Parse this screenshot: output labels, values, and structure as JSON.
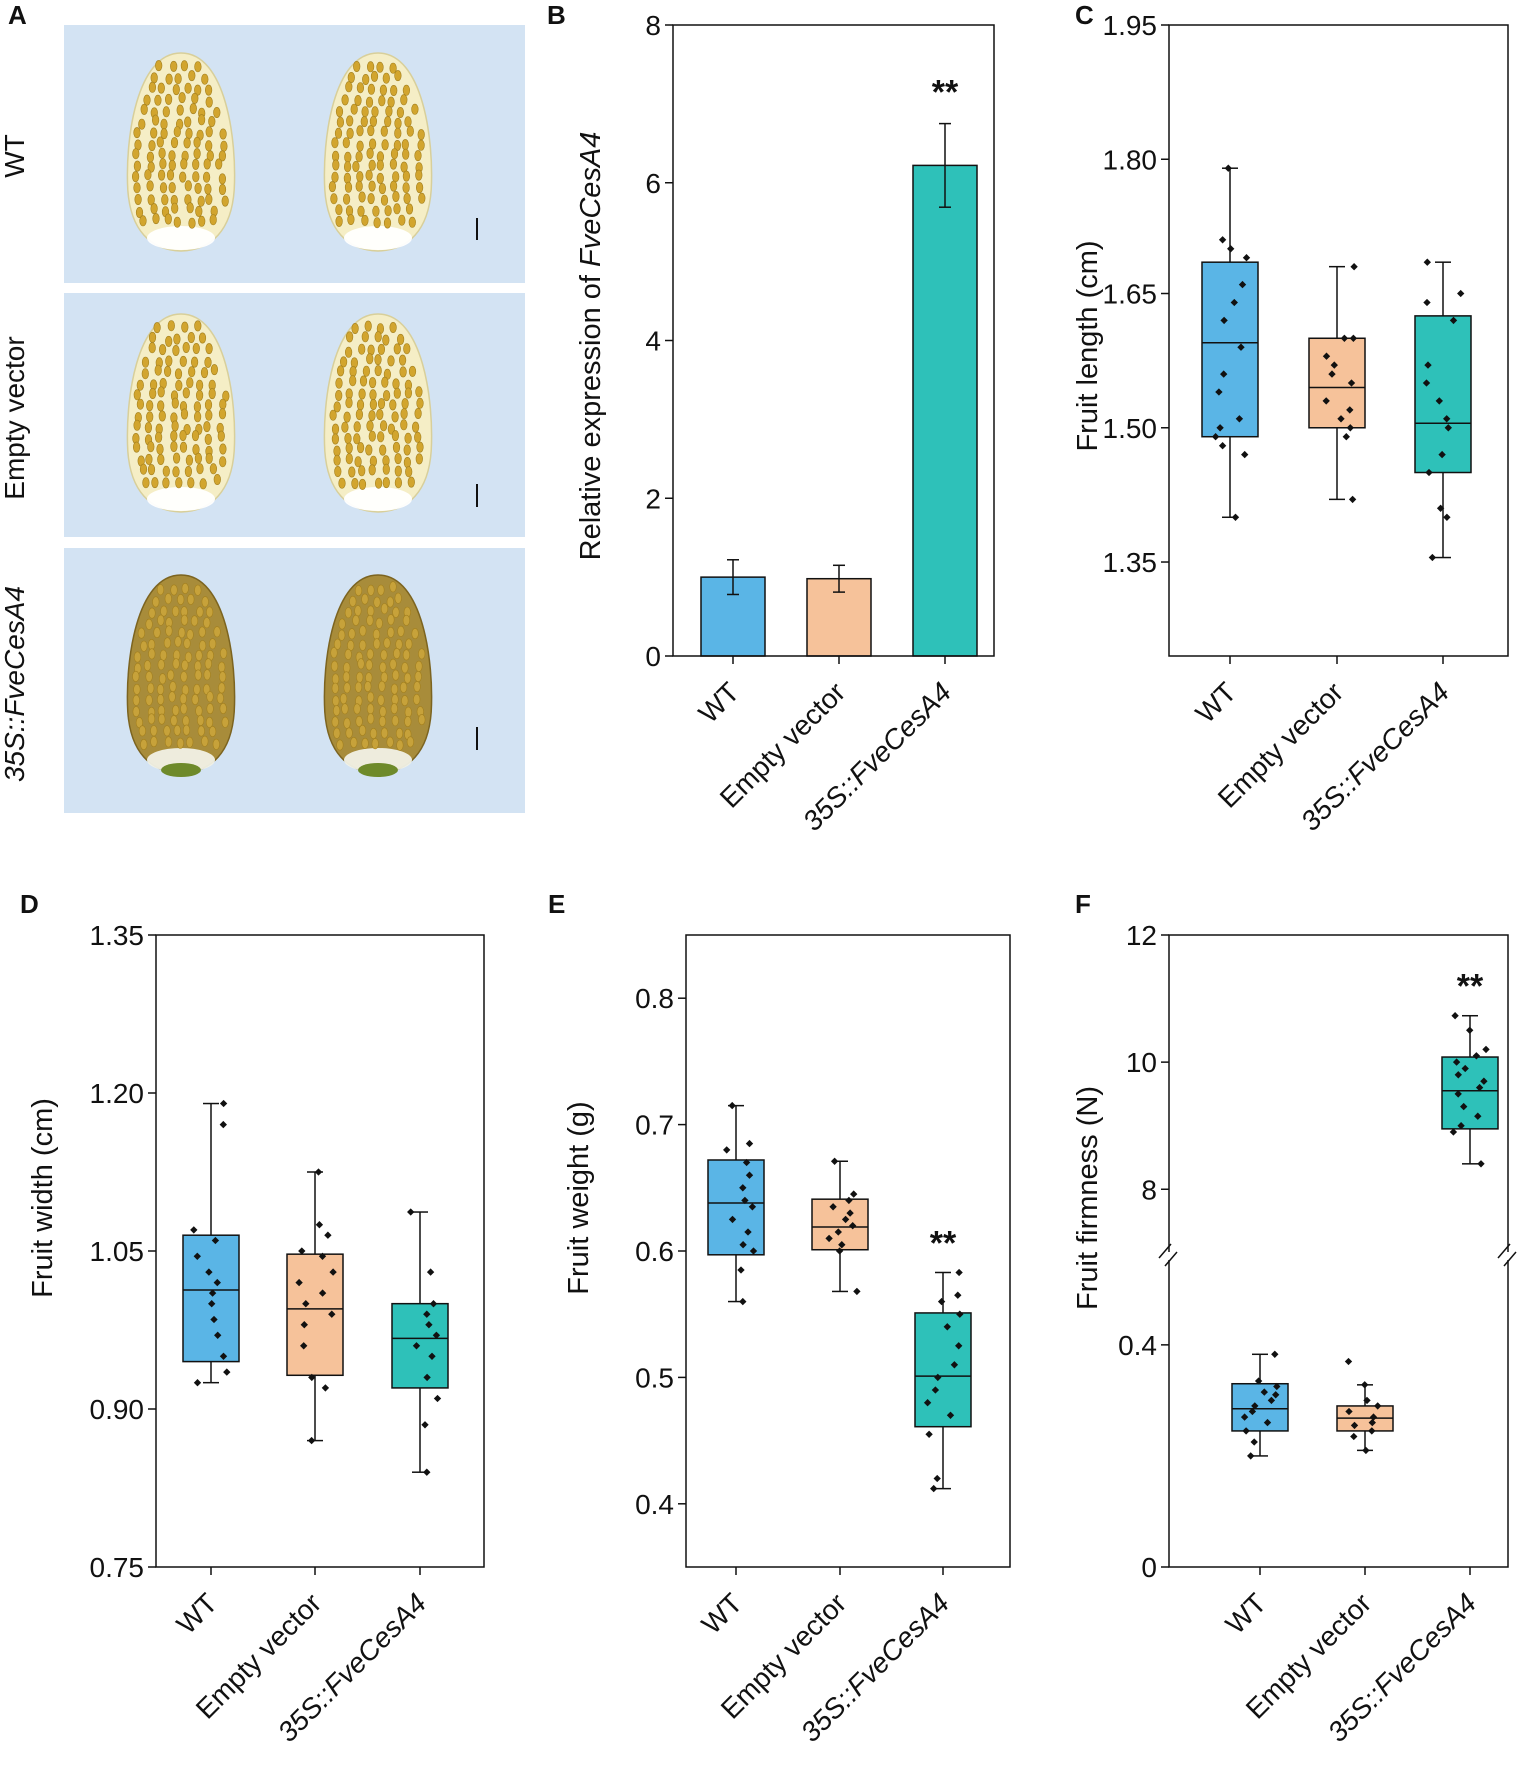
{
  "figure_panels": [
    "A",
    "B",
    "C",
    "D",
    "E",
    "F"
  ],
  "colors": {
    "wt": "#5ab5e6",
    "ev": "#f6c29a",
    "oe": "#2ec1b9",
    "photo_bg": "#d3e3f3",
    "berry": "#f5eec6",
    "achene": "#d2a52e",
    "achene_dark": "#a4801e"
  },
  "photo_panel": {
    "letter": "A",
    "rows": [
      {
        "label": "WT",
        "italic": false,
        "tone": "light"
      },
      {
        "label": "Empty vector",
        "italic": false,
        "tone": "light"
      },
      {
        "label": "35S::FveCesA4",
        "italic": true,
        "tone": "dark"
      }
    ]
  },
  "chart_data": [
    {
      "panel": "B",
      "type": "bar",
      "ylabel_prefix": "Relative expression of ",
      "ylabel_gene": "FveCesA4",
      "ylim": [
        0,
        8
      ],
      "yticks": [
        0,
        2,
        4,
        6,
        8
      ],
      "categories": [
        "WT",
        "Empty vector",
        "35S::FveCesA4"
      ],
      "values": [
        1.0,
        0.98,
        6.22
      ],
      "errors": [
        0.22,
        0.17,
        0.53
      ],
      "significance": [
        "",
        "",
        "**"
      ]
    },
    {
      "panel": "C",
      "type": "box",
      "ylabel": "Fruit length (cm)",
      "ylim": [
        1.245,
        1.95
      ],
      "yticks": [
        1.35,
        1.5,
        1.65,
        1.8,
        1.95
      ],
      "ytick_labels": [
        "1.35",
        "1.50",
        "1.65",
        "1.80",
        "1.95"
      ],
      "categories": [
        "WT",
        "Empty vector",
        "35S::FveCesA4"
      ],
      "boxes": [
        {
          "min": 1.4,
          "q1": 1.49,
          "median": 1.595,
          "q3": 1.685,
          "max": 1.79,
          "points": [
            1.4,
            1.47,
            1.48,
            1.49,
            1.5,
            1.51,
            1.54,
            1.56,
            1.59,
            1.62,
            1.64,
            1.66,
            1.69,
            1.7,
            1.71,
            1.79
          ]
        },
        {
          "min": 1.42,
          "q1": 1.5,
          "median": 1.545,
          "q3": 1.6,
          "max": 1.68,
          "points": [
            1.42,
            1.49,
            1.5,
            1.51,
            1.52,
            1.53,
            1.55,
            1.56,
            1.57,
            1.58,
            1.6,
            1.6,
            1.68
          ]
        },
        {
          "min": 1.355,
          "q1": 1.45,
          "median": 1.505,
          "q3": 1.625,
          "max": 1.685,
          "points": [
            1.355,
            1.4,
            1.41,
            1.45,
            1.47,
            1.5,
            1.51,
            1.53,
            1.55,
            1.57,
            1.62,
            1.64,
            1.65,
            1.685
          ]
        }
      ],
      "significance": [
        "",
        "",
        ""
      ]
    },
    {
      "panel": "D",
      "type": "box",
      "ylabel": "Fruit width (cm)",
      "ylim": [
        0.75,
        1.35
      ],
      "yticks": [
        0.75,
        0.9,
        1.05,
        1.2,
        1.35
      ],
      "ytick_labels": [
        "0.75",
        "0.90",
        "1.05",
        "1.20",
        "1.35"
      ],
      "categories": [
        "WT",
        "Empty vector",
        "35S::FveCesA4"
      ],
      "boxes": [
        {
          "min": 0.925,
          "q1": 0.945,
          "median": 1.013,
          "q3": 1.065,
          "max": 1.19,
          "points": [
            0.925,
            0.935,
            0.95,
            0.97,
            0.985,
            1.0,
            1.01,
            1.02,
            1.03,
            1.045,
            1.06,
            1.07,
            1.17,
            1.19
          ]
        },
        {
          "min": 0.87,
          "q1": 0.932,
          "median": 0.995,
          "q3": 1.047,
          "max": 1.125,
          "points": [
            0.87,
            0.92,
            0.93,
            0.96,
            0.98,
            0.99,
            1.0,
            1.01,
            1.02,
            1.03,
            1.045,
            1.05,
            1.065,
            1.075,
            1.125
          ]
        },
        {
          "min": 0.84,
          "q1": 0.92,
          "median": 0.967,
          "q3": 1.0,
          "max": 1.087,
          "points": [
            0.84,
            0.885,
            0.91,
            0.93,
            0.95,
            0.96,
            0.97,
            0.98,
            0.99,
            1.0,
            1.03,
            1.087
          ]
        }
      ],
      "significance": [
        "",
        "",
        ""
      ]
    },
    {
      "panel": "E",
      "type": "box",
      "ylabel": "Fruit weight (g)",
      "ylim": [
        0.35,
        0.85
      ],
      "yticks": [
        0.4,
        0.5,
        0.6,
        0.7,
        0.8
      ],
      "ytick_labels": [
        "0.4",
        "0.5",
        "0.6",
        "0.7",
        "0.8"
      ],
      "categories": [
        "WT",
        "Empty vector",
        "35S::FveCesA4"
      ],
      "boxes": [
        {
          "min": 0.56,
          "q1": 0.597,
          "median": 0.638,
          "q3": 0.672,
          "max": 0.715,
          "points": [
            0.56,
            0.585,
            0.6,
            0.605,
            0.615,
            0.625,
            0.635,
            0.64,
            0.65,
            0.66,
            0.67,
            0.68,
            0.685,
            0.715
          ]
        },
        {
          "min": 0.568,
          "q1": 0.601,
          "median": 0.619,
          "q3": 0.641,
          "max": 0.671,
          "points": [
            0.568,
            0.6,
            0.605,
            0.61,
            0.615,
            0.62,
            0.625,
            0.63,
            0.635,
            0.64,
            0.645,
            0.671
          ]
        },
        {
          "min": 0.412,
          "q1": 0.461,
          "median": 0.501,
          "q3": 0.551,
          "max": 0.583,
          "points": [
            0.412,
            0.42,
            0.455,
            0.47,
            0.48,
            0.49,
            0.5,
            0.51,
            0.525,
            0.54,
            0.55,
            0.56,
            0.565,
            0.583
          ]
        }
      ],
      "significance": [
        "",
        "",
        "**"
      ]
    },
    {
      "panel": "F",
      "type": "box",
      "broken_axis": true,
      "ylabel": "Fruit firmness (N)",
      "ylim_lower": [
        0,
        0.56
      ],
      "ylim_upper": [
        6.95,
        12
      ],
      "yticks": [
        0,
        0.4,
        8,
        10,
        12
      ],
      "ytick_labels": [
        "0",
        "0.4",
        "8",
        "10",
        "12"
      ],
      "categories": [
        "WT",
        "Empty vector",
        "35S::FveCesA4"
      ],
      "boxes": [
        {
          "min": 0.2,
          "q1": 0.245,
          "median": 0.285,
          "q3": 0.33,
          "max": 0.383,
          "points": [
            0.2,
            0.225,
            0.245,
            0.26,
            0.27,
            0.28,
            0.29,
            0.3,
            0.31,
            0.315,
            0.325,
            0.335,
            0.383
          ]
        },
        {
          "min": 0.21,
          "q1": 0.245,
          "median": 0.268,
          "q3": 0.29,
          "max": 0.328,
          "points": [
            0.21,
            0.235,
            0.245,
            0.255,
            0.26,
            0.27,
            0.28,
            0.29,
            0.3,
            0.328,
            0.37
          ]
        },
        {
          "min": 8.4,
          "q1": 8.95,
          "median": 9.55,
          "q3": 10.08,
          "max": 10.73,
          "points": [
            8.4,
            8.9,
            9.0,
            9.15,
            9.3,
            9.5,
            9.6,
            9.7,
            9.8,
            9.9,
            10.0,
            10.1,
            10.2,
            10.5,
            10.73
          ]
        }
      ],
      "significance": [
        "",
        "",
        "**"
      ]
    }
  ]
}
